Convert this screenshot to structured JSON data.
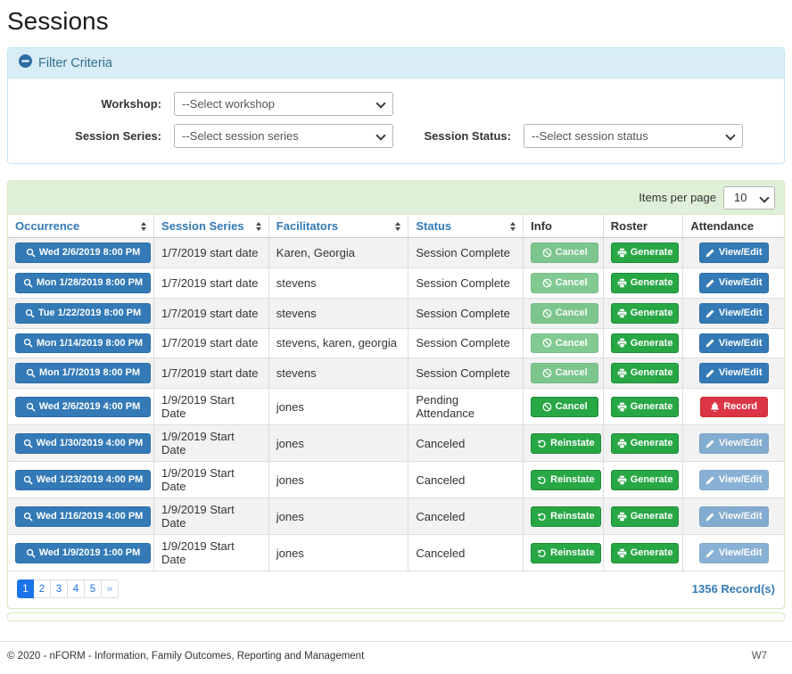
{
  "page": {
    "title": "Sessions"
  },
  "filter": {
    "title": "Filter Criteria",
    "collapse_icon": "minus-circle-icon",
    "fields": [
      {
        "label": "Workshop:",
        "value": "--Select workshop"
      },
      {
        "label": "Session Series:",
        "value": "--Select session series"
      },
      {
        "label": "Session Status:",
        "value": "--Select session status"
      }
    ]
  },
  "table": {
    "items_per_page_label": "Items per page",
    "items_per_page_value": "10",
    "columns": [
      {
        "label": "Occurrence",
        "sortable": true
      },
      {
        "label": "Session Series",
        "sortable": true
      },
      {
        "label": "Facilitators",
        "sortable": true
      },
      {
        "label": "Status",
        "sortable": true
      },
      {
        "label": "Info",
        "sortable": false
      },
      {
        "label": "Roster",
        "sortable": false
      },
      {
        "label": "Attendance",
        "sortable": false
      }
    ],
    "rows": [
      {
        "occurrence": "Wed 2/6/2019 8:00 PM",
        "session_series": "1/7/2019 start date",
        "facilitators": "Karen, Georgia",
        "status": "Session Complete",
        "info": {
          "label": "Cancel",
          "icon": "ban-icon",
          "style": "success",
          "disabled": true
        },
        "roster": {
          "label": "Generate",
          "icon": "printer-icon",
          "style": "success",
          "disabled": false
        },
        "attendance": {
          "label": "View/Edit",
          "icon": "pencil-icon",
          "style": "primary",
          "disabled": false
        }
      },
      {
        "occurrence": "Mon 1/28/2019 8:00 PM",
        "session_series": "1/7/2019 start date",
        "facilitators": "stevens",
        "status": "Session Complete",
        "info": {
          "label": "Cancel",
          "icon": "ban-icon",
          "style": "success",
          "disabled": true
        },
        "roster": {
          "label": "Generate",
          "icon": "printer-icon",
          "style": "success",
          "disabled": false
        },
        "attendance": {
          "label": "View/Edit",
          "icon": "pencil-icon",
          "style": "primary",
          "disabled": false
        }
      },
      {
        "occurrence": "Tue 1/22/2019 8:00 PM",
        "session_series": "1/7/2019 start date",
        "facilitators": "stevens",
        "status": "Session Complete",
        "info": {
          "label": "Cancel",
          "icon": "ban-icon",
          "style": "success",
          "disabled": true
        },
        "roster": {
          "label": "Generate",
          "icon": "printer-icon",
          "style": "success",
          "disabled": false
        },
        "attendance": {
          "label": "View/Edit",
          "icon": "pencil-icon",
          "style": "primary",
          "disabled": false
        }
      },
      {
        "occurrence": "Mon 1/14/2019 8:00 PM",
        "session_series": "1/7/2019 start date",
        "facilitators": "stevens, karen, georgia",
        "status": "Session Complete",
        "info": {
          "label": "Cancel",
          "icon": "ban-icon",
          "style": "success",
          "disabled": true
        },
        "roster": {
          "label": "Generate",
          "icon": "printer-icon",
          "style": "success",
          "disabled": false
        },
        "attendance": {
          "label": "View/Edit",
          "icon": "pencil-icon",
          "style": "primary",
          "disabled": false
        }
      },
      {
        "occurrence": "Mon 1/7/2019 8:00 PM",
        "session_series": "1/7/2019 start date",
        "facilitators": "stevens",
        "status": "Session Complete",
        "info": {
          "label": "Cancel",
          "icon": "ban-icon",
          "style": "success",
          "disabled": true
        },
        "roster": {
          "label": "Generate",
          "icon": "printer-icon",
          "style": "success",
          "disabled": false
        },
        "attendance": {
          "label": "View/Edit",
          "icon": "pencil-icon",
          "style": "primary",
          "disabled": false
        }
      },
      {
        "occurrence": "Wed 2/6/2019 4:00 PM",
        "session_series": "1/9/2019 Start Date",
        "facilitators": "jones",
        "status": "Pending Attendance",
        "info": {
          "label": "Cancel",
          "icon": "ban-icon",
          "style": "success",
          "disabled": false
        },
        "roster": {
          "label": "Generate",
          "icon": "printer-icon",
          "style": "success",
          "disabled": false
        },
        "attendance": {
          "label": "Record",
          "icon": "bell-icon",
          "style": "danger",
          "disabled": false
        }
      },
      {
        "occurrence": "Wed 1/30/2019 4:00 PM",
        "session_series": "1/9/2019 Start Date",
        "facilitators": "jones",
        "status": "Canceled",
        "info": {
          "label": "Reinstate",
          "icon": "undo-icon",
          "style": "success",
          "disabled": false
        },
        "roster": {
          "label": "Generate",
          "icon": "printer-icon",
          "style": "success",
          "disabled": false
        },
        "attendance": {
          "label": "View/Edit",
          "icon": "pencil-icon",
          "style": "primary",
          "disabled": true
        }
      },
      {
        "occurrence": "Wed 1/23/2019 4:00 PM",
        "session_series": "1/9/2019 Start Date",
        "facilitators": "jones",
        "status": "Canceled",
        "info": {
          "label": "Reinstate",
          "icon": "undo-icon",
          "style": "success",
          "disabled": false
        },
        "roster": {
          "label": "Generate",
          "icon": "printer-icon",
          "style": "success",
          "disabled": false
        },
        "attendance": {
          "label": "View/Edit",
          "icon": "pencil-icon",
          "style": "primary",
          "disabled": true
        }
      },
      {
        "occurrence": "Wed 1/16/2019 4:00 PM",
        "session_series": "1/9/2019 Start Date",
        "facilitators": "jones",
        "status": "Canceled",
        "info": {
          "label": "Reinstate",
          "icon": "undo-icon",
          "style": "success",
          "disabled": false
        },
        "roster": {
          "label": "Generate",
          "icon": "printer-icon",
          "style": "success",
          "disabled": false
        },
        "attendance": {
          "label": "View/Edit",
          "icon": "pencil-icon",
          "style": "primary",
          "disabled": true
        }
      },
      {
        "occurrence": "Wed 1/9/2019 1:00 PM",
        "session_series": "1/9/2019 Start Date",
        "facilitators": "jones",
        "status": "Canceled",
        "info": {
          "label": "Reinstate",
          "icon": "undo-icon",
          "style": "success",
          "disabled": false
        },
        "roster": {
          "label": "Generate",
          "icon": "printer-icon",
          "style": "success",
          "disabled": false
        },
        "attendance": {
          "label": "View/Edit",
          "icon": "pencil-icon",
          "style": "primary",
          "disabled": true
        }
      }
    ],
    "record_count": "1356 Record(s)"
  },
  "pagination": {
    "pages": [
      "1",
      "2",
      "3",
      "4",
      "5",
      "»"
    ],
    "active": "1"
  },
  "footer": {
    "copyright": "© 2020 - nFORM - Information, Family Outcomes, Reporting and Management",
    "version": "W7"
  },
  "colors": {
    "primary_button": "#337ab7",
    "success_button": "#28a745",
    "danger_button": "#dc3545",
    "pagination_active": "#1a73e8",
    "filter_header_bg": "#d9edf7",
    "filter_header_text": "#31708f",
    "table_header_bg": "#dff0d8",
    "link_blue": "#337ab7"
  }
}
